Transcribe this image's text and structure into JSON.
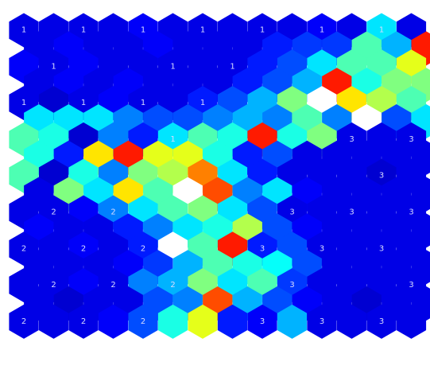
{
  "chart_data": {
    "type": "heatmap",
    "title": "",
    "xlabel": "",
    "ylabel": "",
    "grid": "hexagonal",
    "colormap": "jet",
    "value_range": [
      0,
      1
    ],
    "columns": 14,
    "values": [
      [
        0.1,
        0.1,
        0.1,
        0.1,
        0.12,
        0.1,
        0.1,
        0.1,
        0.1,
        0.1,
        0.12,
        0.1,
        0.35,
        0.1
      ],
      [
        0.1,
        0.12,
        0.1,
        0.1,
        0.12,
        0.1,
        0.1,
        0.1,
        0.15,
        0.18,
        0.18,
        0.45,
        0.3,
        0.85
      ],
      [
        0.12,
        0.1,
        0.12,
        0.1,
        0.1,
        0.1,
        0.1,
        0.1,
        0.15,
        0.2,
        0.35,
        0.45,
        0.45,
        0.6
      ],
      [
        0.1,
        0.12,
        0.1,
        0.12,
        0.1,
        0.1,
        0.1,
        0.15,
        0.2,
        0.3,
        0.85,
        0.4,
        0.5,
        0.5
      ],
      [
        0.1,
        0.08,
        0.1,
        0.12,
        0.1,
        0.1,
        0.15,
        0.2,
        0.3,
        0.5,
        0.7,
        0.65,
        0.55,
        0.45
      ],
      [
        0.35,
        0.35,
        0.35,
        0.25,
        0.2,
        0.2,
        0.25,
        0.3,
        0.25,
        0.45,
        0.25,
        0.7,
        0.2,
        0.35
      ],
      [
        0.45,
        0.4,
        0.08,
        0.25,
        0.15,
        0.35,
        0.45,
        0.4,
        0.85,
        0.4,
        0.5,
        0.1,
        0.1,
        0.1
      ],
      [
        0.4,
        0.15,
        0.65,
        0.85,
        0.6,
        0.6,
        0.4,
        0.15,
        0.2,
        0.1,
        0.1,
        0.1,
        0.1,
        0.1
      ],
      [
        0.45,
        0.08,
        0.4,
        0.25,
        0.5,
        0.55,
        0.75,
        0.35,
        0.15,
        0.1,
        0.1,
        0.1,
        0.08,
        0.1
      ],
      [
        0.1,
        0.5,
        0.35,
        0.65,
        0.45,
        0.7,
        0.8,
        0.25,
        0.35,
        0.12,
        0.1,
        0.1,
        0.1,
        0.1
      ],
      [
        0.1,
        0.1,
        0.12,
        0.25,
        0.35,
        0.45,
        0.5,
        0.35,
        0.2,
        0.1,
        0.1,
        0.1,
        0.1,
        0.1
      ],
      [
        0.12,
        0.1,
        0.1,
        0.15,
        0.25,
        0.35,
        0.4,
        0.55,
        0.2,
        0.12,
        0.1,
        0.1,
        0.1,
        0.1
      ],
      [
        0.1,
        0.1,
        0.12,
        0.1,
        0.15,
        0.7,
        0.45,
        0.85,
        0.15,
        0.2,
        0.1,
        0.1,
        0.1,
        0.1
      ],
      [
        0.1,
        0.1,
        0.1,
        0.12,
        0.18,
        0.3,
        0.45,
        0.4,
        0.38,
        0.2,
        0.1,
        0.1,
        0.1,
        0.1
      ],
      [
        0.1,
        0.1,
        0.12,
        0.1,
        0.25,
        0.3,
        0.5,
        0.35,
        0.45,
        0.18,
        0.1,
        0.1,
        0.1,
        0.1
      ],
      [
        0.1,
        0.08,
        0.1,
        0.1,
        0.2,
        0.25,
        0.8,
        0.3,
        0.2,
        0.12,
        0.1,
        0.08,
        0.1,
        0.1
      ],
      [
        0.1,
        0.1,
        0.1,
        0.12,
        0.2,
        0.4,
        0.6,
        0.15,
        0.12,
        0.3,
        0.1,
        0.1,
        0.1,
        0.1
      ]
    ],
    "cell_labels": [
      {
        "row": 0,
        "col": 0,
        "text": "1"
      },
      {
        "row": 0,
        "col": 2,
        "text": "1"
      },
      {
        "row": 0,
        "col": 4,
        "text": "1"
      },
      {
        "row": 0,
        "col": 6,
        "text": "1"
      },
      {
        "row": 0,
        "col": 8,
        "text": "1"
      },
      {
        "row": 0,
        "col": 10,
        "text": "1"
      },
      {
        "row": 0,
        "col": 12,
        "text": "1"
      },
      {
        "row": 2,
        "col": 1,
        "text": "1"
      },
      {
        "row": 2,
        "col": 5,
        "text": "1"
      },
      {
        "row": 2,
        "col": 7,
        "text": "1"
      },
      {
        "row": 4,
        "col": 0,
        "text": "1"
      },
      {
        "row": 4,
        "col": 2,
        "text": "1"
      },
      {
        "row": 4,
        "col": 4,
        "text": "1"
      },
      {
        "row": 4,
        "col": 6,
        "text": "1"
      },
      {
        "row": 6,
        "col": 5,
        "text": "1"
      },
      {
        "row": 6,
        "col": 11,
        "text": "3"
      },
      {
        "row": 6,
        "col": 13,
        "text": "3"
      },
      {
        "row": 8,
        "col": 12,
        "text": "3"
      },
      {
        "row": 10,
        "col": 1,
        "text": "2"
      },
      {
        "row": 10,
        "col": 3,
        "text": "2"
      },
      {
        "row": 10,
        "col": 9,
        "text": "3"
      },
      {
        "row": 10,
        "col": 11,
        "text": "3"
      },
      {
        "row": 10,
        "col": 13,
        "text": "3"
      },
      {
        "row": 12,
        "col": 0,
        "text": "2"
      },
      {
        "row": 12,
        "col": 2,
        "text": "2"
      },
      {
        "row": 12,
        "col": 4,
        "text": "2"
      },
      {
        "row": 12,
        "col": 8,
        "text": "3"
      },
      {
        "row": 12,
        "col": 10,
        "text": "3"
      },
      {
        "row": 12,
        "col": 12,
        "text": "3"
      },
      {
        "row": 14,
        "col": 1,
        "text": "2"
      },
      {
        "row": 14,
        "col": 3,
        "text": "2"
      },
      {
        "row": 14,
        "col": 5,
        "text": "2"
      },
      {
        "row": 14,
        "col": 9,
        "text": "3"
      },
      {
        "row": 14,
        "col": 13,
        "text": "3"
      },
      {
        "row": 16,
        "col": 0,
        "text": "2"
      },
      {
        "row": 16,
        "col": 2,
        "text": "2"
      },
      {
        "row": 16,
        "col": 4,
        "text": "2"
      },
      {
        "row": 16,
        "col": 8,
        "text": "3"
      },
      {
        "row": 16,
        "col": 10,
        "text": "3"
      },
      {
        "row": 16,
        "col": 12,
        "text": "3"
      }
    ]
  }
}
